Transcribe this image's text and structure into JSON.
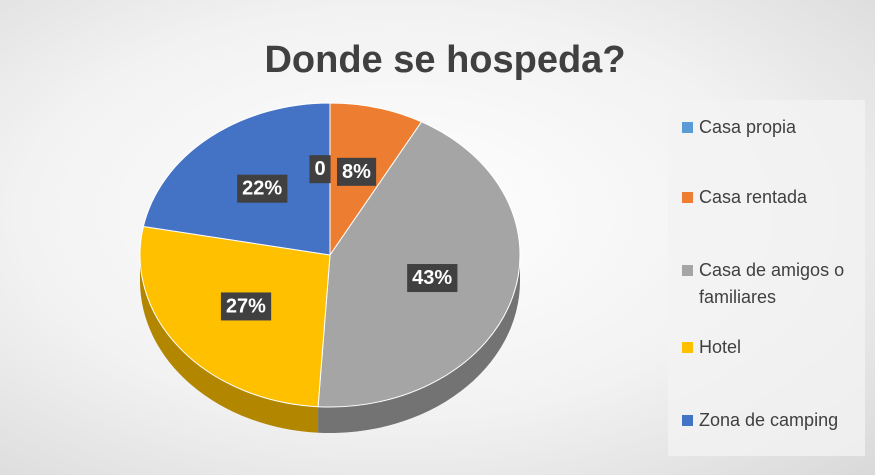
{
  "chart_data": {
    "type": "pie",
    "title": "Donde se hospeda?",
    "categories": [
      "Casa propia",
      "Casa rentada",
      "Casa de amigos o familiares",
      "Hotel",
      "Zona de camping"
    ],
    "values": [
      0,
      8,
      43,
      27,
      22
    ],
    "value_labels": [
      "0",
      "8%",
      "43%",
      "27%",
      "22%"
    ],
    "colors": [
      "#5b9bd5",
      "#ed7d31",
      "#a5a5a5",
      "#ffc000",
      "#4472c4"
    ],
    "legend": "right"
  }
}
